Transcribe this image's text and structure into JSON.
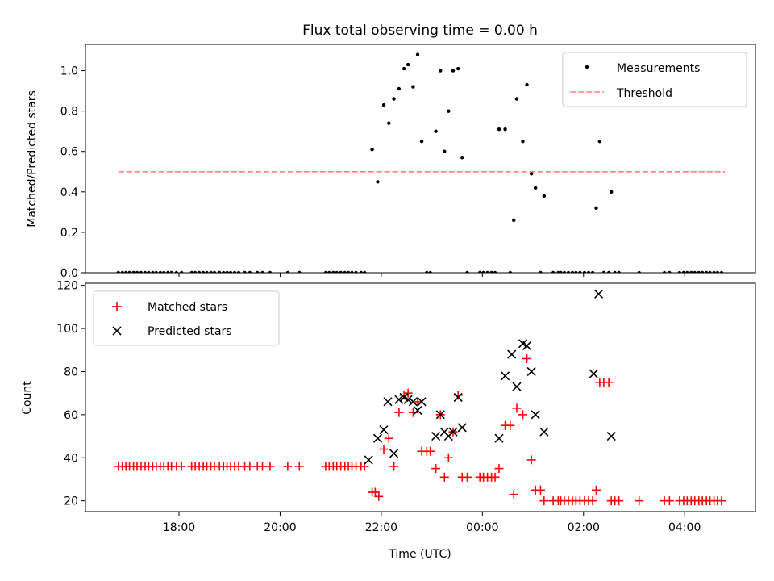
{
  "chart_data": [
    {
      "type": "scatter",
      "title": "Flux total observing time = 0.00 h",
      "ylabel": "Matched/Predicted stars",
      "xlabel": "",
      "ylim": [
        0,
        1.13
      ],
      "yticks": [
        0.0,
        0.2,
        0.4,
        0.6,
        0.8,
        1.0
      ],
      "ytick_labels": [
        "0.0",
        "0.2",
        "0.4",
        "0.6",
        "0.8",
        "1.0"
      ],
      "threshold": {
        "value": 0.5,
        "x_range": [
          16.8,
          28.8
        ],
        "color": "#ff7f7f"
      },
      "legend": {
        "position": "top-right",
        "measurements_label": "Measurements",
        "threshold_label": "Threshold"
      },
      "measurements": [
        [
          16.8,
          0
        ],
        [
          16.88,
          0
        ],
        [
          16.95,
          0
        ],
        [
          17.02,
          0
        ],
        [
          17.1,
          0
        ],
        [
          17.17,
          0
        ],
        [
          17.25,
          0
        ],
        [
          17.33,
          0
        ],
        [
          17.4,
          0
        ],
        [
          17.48,
          0
        ],
        [
          17.55,
          0
        ],
        [
          17.63,
          0
        ],
        [
          17.7,
          0
        ],
        [
          17.78,
          0
        ],
        [
          17.85,
          0
        ],
        [
          17.95,
          0
        ],
        [
          18.05,
          0
        ],
        [
          18.25,
          0
        ],
        [
          18.32,
          0
        ],
        [
          18.4,
          0
        ],
        [
          18.48,
          0
        ],
        [
          18.55,
          0
        ],
        [
          18.63,
          0
        ],
        [
          18.7,
          0
        ],
        [
          18.8,
          0
        ],
        [
          18.88,
          0
        ],
        [
          18.95,
          0
        ],
        [
          19.02,
          0
        ],
        [
          19.1,
          0
        ],
        [
          19.18,
          0
        ],
        [
          19.3,
          0
        ],
        [
          19.4,
          0
        ],
        [
          19.55,
          0
        ],
        [
          19.65,
          0
        ],
        [
          19.8,
          0
        ],
        [
          20.15,
          0
        ],
        [
          20.38,
          0
        ],
        [
          20.9,
          0
        ],
        [
          20.97,
          0
        ],
        [
          21.05,
          0
        ],
        [
          21.12,
          0
        ],
        [
          21.2,
          0
        ],
        [
          21.28,
          0
        ],
        [
          21.35,
          0
        ],
        [
          21.42,
          0
        ],
        [
          21.5,
          0
        ],
        [
          21.6,
          0
        ],
        [
          21.67,
          0
        ],
        [
          21.82,
          0.61
        ],
        [
          21.93,
          0.45
        ],
        [
          22.05,
          0.83
        ],
        [
          22.15,
          0.74
        ],
        [
          22.25,
          0.86
        ],
        [
          22.35,
          0.91
        ],
        [
          22.45,
          1.01
        ],
        [
          22.53,
          1.03
        ],
        [
          22.63,
          0.92
        ],
        [
          22.72,
          1.08
        ],
        [
          22.8,
          0.65
        ],
        [
          22.9,
          0
        ],
        [
          22.97,
          0
        ],
        [
          23.08,
          0.7
        ],
        [
          23.17,
          1.0
        ],
        [
          23.25,
          0.6
        ],
        [
          23.33,
          0.8
        ],
        [
          23.42,
          1.0
        ],
        [
          23.52,
          1.01
        ],
        [
          23.6,
          0.57
        ],
        [
          23.7,
          0
        ],
        [
          23.95,
          0
        ],
        [
          24.02,
          0
        ],
        [
          24.1,
          0
        ],
        [
          24.18,
          0
        ],
        [
          24.25,
          0
        ],
        [
          24.33,
          0.71
        ],
        [
          24.45,
          0.71
        ],
        [
          24.55,
          0
        ],
        [
          24.62,
          0.26
        ],
        [
          24.68,
          0.86
        ],
        [
          24.8,
          0.65
        ],
        [
          24.88,
          0.93
        ],
        [
          24.97,
          0.49
        ],
        [
          25.05,
          0.42
        ],
        [
          25.15,
          0
        ],
        [
          25.22,
          0.38
        ],
        [
          25.4,
          0
        ],
        [
          25.5,
          0
        ],
        [
          25.55,
          0
        ],
        [
          25.62,
          0
        ],
        [
          25.7,
          0
        ],
        [
          25.78,
          0
        ],
        [
          25.85,
          0
        ],
        [
          25.93,
          0
        ],
        [
          26.02,
          0
        ],
        [
          26.1,
          0
        ],
        [
          26.18,
          0
        ],
        [
          26.25,
          0.32
        ],
        [
          26.32,
          0.65
        ],
        [
          26.4,
          0
        ],
        [
          26.5,
          0
        ],
        [
          26.55,
          0.4
        ],
        [
          26.62,
          0
        ],
        [
          26.7,
          0
        ],
        [
          27.1,
          0
        ],
        [
          27.6,
          0
        ],
        [
          27.7,
          0
        ],
        [
          27.9,
          0
        ],
        [
          27.98,
          0
        ],
        [
          28.05,
          0
        ],
        [
          28.13,
          0
        ],
        [
          28.2,
          0
        ],
        [
          28.28,
          0
        ],
        [
          28.35,
          0
        ],
        [
          28.43,
          0
        ],
        [
          28.5,
          0
        ],
        [
          28.58,
          0
        ],
        [
          28.65,
          0
        ],
        [
          28.73,
          0
        ]
      ]
    },
    {
      "type": "scatter",
      "title": "",
      "xlabel": "Time (UTC)",
      "ylabel": "Count",
      "xlim": [
        16.15,
        29.4
      ],
      "ylim": [
        15,
        121
      ],
      "xticks": [
        18,
        20,
        22,
        24,
        26,
        28
      ],
      "xtick_labels": [
        "18:00",
        "20:00",
        "22:00",
        "00:00",
        "02:00",
        "04:00"
      ],
      "yticks": [
        20,
        40,
        60,
        80,
        100,
        120
      ],
      "ytick_labels": [
        "20",
        "40",
        "60",
        "80",
        "100",
        "120"
      ],
      "legend": {
        "position": "top-left",
        "matched_label": "Matched stars",
        "predicted_label": "Predicted stars"
      },
      "matched": [
        [
          16.8,
          36
        ],
        [
          16.88,
          36
        ],
        [
          16.95,
          36
        ],
        [
          17.02,
          36
        ],
        [
          17.1,
          36
        ],
        [
          17.17,
          36
        ],
        [
          17.25,
          36
        ],
        [
          17.33,
          36
        ],
        [
          17.4,
          36
        ],
        [
          17.48,
          36
        ],
        [
          17.55,
          36
        ],
        [
          17.63,
          36
        ],
        [
          17.7,
          36
        ],
        [
          17.78,
          36
        ],
        [
          17.85,
          36
        ],
        [
          17.95,
          36
        ],
        [
          18.05,
          36
        ],
        [
          18.25,
          36
        ],
        [
          18.32,
          36
        ],
        [
          18.4,
          36
        ],
        [
          18.48,
          36
        ],
        [
          18.55,
          36
        ],
        [
          18.63,
          36
        ],
        [
          18.7,
          36
        ],
        [
          18.8,
          36
        ],
        [
          18.88,
          36
        ],
        [
          18.95,
          36
        ],
        [
          19.02,
          36
        ],
        [
          19.1,
          36
        ],
        [
          19.18,
          36
        ],
        [
          19.3,
          36
        ],
        [
          19.4,
          36
        ],
        [
          19.55,
          36
        ],
        [
          19.65,
          36
        ],
        [
          19.8,
          36
        ],
        [
          20.15,
          36
        ],
        [
          20.38,
          36
        ],
        [
          20.9,
          36
        ],
        [
          20.97,
          36
        ],
        [
          21.05,
          36
        ],
        [
          21.12,
          36
        ],
        [
          21.2,
          36
        ],
        [
          21.28,
          36
        ],
        [
          21.35,
          36
        ],
        [
          21.42,
          36
        ],
        [
          21.5,
          36
        ],
        [
          21.6,
          36
        ],
        [
          21.67,
          36
        ],
        [
          21.82,
          24
        ],
        [
          21.88,
          24
        ],
        [
          21.95,
          22
        ],
        [
          22.05,
          44
        ],
        [
          22.15,
          49
        ],
        [
          22.25,
          36
        ],
        [
          22.35,
          61
        ],
        [
          22.45,
          69
        ],
        [
          22.53,
          70
        ],
        [
          22.63,
          61
        ],
        [
          22.72,
          66
        ],
        [
          22.8,
          43
        ],
        [
          22.9,
          43
        ],
        [
          22.97,
          43
        ],
        [
          23.08,
          35
        ],
        [
          23.17,
          60
        ],
        [
          23.25,
          31
        ],
        [
          23.33,
          40
        ],
        [
          23.42,
          52
        ],
        [
          23.52,
          69
        ],
        [
          23.6,
          31
        ],
        [
          23.7,
          31
        ],
        [
          23.95,
          31
        ],
        [
          24.02,
          31
        ],
        [
          24.1,
          31
        ],
        [
          24.18,
          31
        ],
        [
          24.25,
          31
        ],
        [
          24.33,
          35
        ],
        [
          24.45,
          55
        ],
        [
          24.55,
          55
        ],
        [
          24.62,
          23
        ],
        [
          24.68,
          63
        ],
        [
          24.8,
          60
        ],
        [
          24.88,
          86
        ],
        [
          24.97,
          39
        ],
        [
          25.05,
          25
        ],
        [
          25.15,
          25
        ],
        [
          25.22,
          20
        ],
        [
          25.4,
          20
        ],
        [
          25.5,
          20
        ],
        [
          25.55,
          20
        ],
        [
          25.62,
          20
        ],
        [
          25.7,
          20
        ],
        [
          25.78,
          20
        ],
        [
          25.85,
          20
        ],
        [
          25.93,
          20
        ],
        [
          26.02,
          20
        ],
        [
          26.1,
          20
        ],
        [
          26.18,
          20
        ],
        [
          26.25,
          25
        ],
        [
          26.32,
          75
        ],
        [
          26.4,
          75
        ],
        [
          26.5,
          75
        ],
        [
          26.55,
          20
        ],
        [
          26.62,
          20
        ],
        [
          26.7,
          20
        ],
        [
          27.1,
          20
        ],
        [
          27.6,
          20
        ],
        [
          27.7,
          20
        ],
        [
          27.9,
          20
        ],
        [
          27.98,
          20
        ],
        [
          28.05,
          20
        ],
        [
          28.13,
          20
        ],
        [
          28.2,
          20
        ],
        [
          28.28,
          20
        ],
        [
          28.35,
          20
        ],
        [
          28.43,
          20
        ],
        [
          28.5,
          20
        ],
        [
          28.58,
          20
        ],
        [
          28.65,
          20
        ],
        [
          28.73,
          20
        ]
      ],
      "predicted": [
        [
          21.75,
          39
        ],
        [
          21.93,
          49
        ],
        [
          22.05,
          53
        ],
        [
          22.13,
          66
        ],
        [
          22.25,
          42
        ],
        [
          22.35,
          67
        ],
        [
          22.45,
          68
        ],
        [
          22.53,
          67
        ],
        [
          22.63,
          66
        ],
        [
          22.72,
          62
        ],
        [
          22.8,
          66
        ],
        [
          23.08,
          50
        ],
        [
          23.17,
          60
        ],
        [
          23.25,
          52
        ],
        [
          23.33,
          50
        ],
        [
          23.42,
          52
        ],
        [
          23.52,
          68
        ],
        [
          23.6,
          54
        ],
        [
          24.33,
          49
        ],
        [
          24.45,
          78
        ],
        [
          24.58,
          88
        ],
        [
          24.68,
          73
        ],
        [
          24.8,
          93
        ],
        [
          24.88,
          92
        ],
        [
          24.97,
          80
        ],
        [
          25.05,
          60
        ],
        [
          25.22,
          52
        ],
        [
          26.2,
          79
        ],
        [
          26.3,
          116
        ],
        [
          26.55,
          50
        ]
      ]
    }
  ]
}
